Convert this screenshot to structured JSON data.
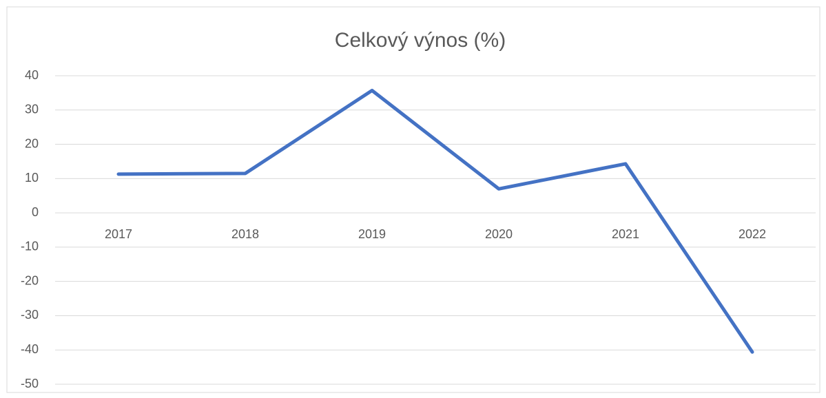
{
  "chart_data": {
    "type": "line",
    "title": "Celkový výnos (%)",
    "categories": [
      "2017",
      "2018",
      "2019",
      "2020",
      "2021",
      "2022"
    ],
    "series": [
      {
        "name": "Celkový výnos (%)",
        "color": "#4472c4",
        "values": [
          11.3,
          11.5,
          35.7,
          7.0,
          14.3,
          -40.6
        ]
      }
    ],
    "ylim": [
      -50,
      40
    ],
    "yticks": [
      -50,
      -40,
      -30,
      -20,
      -10,
      0,
      10,
      20,
      30,
      40
    ],
    "grid": true
  }
}
